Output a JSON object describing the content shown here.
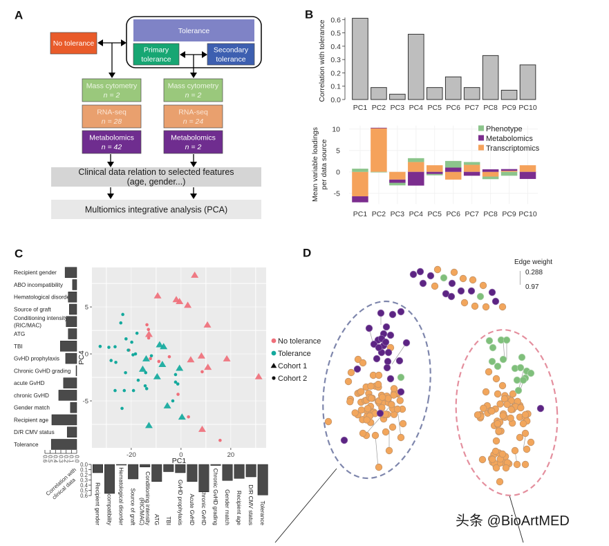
{
  "panel_labels": {
    "a": "A",
    "b": "B",
    "c": "C",
    "d": "D"
  },
  "panel_a": {
    "no_tolerance": "No tolerance",
    "tolerance": "Tolerance",
    "primary_tolerance": [
      "Primary",
      "tolerance"
    ],
    "secondary_tolerance": [
      "Secondary",
      "tolerance"
    ],
    "left_column": [
      {
        "title": "Mass cytometry",
        "n": "n = 2"
      },
      {
        "title": "RNA-seq",
        "n": "n = 28"
      },
      {
        "title": "Metabolomics",
        "n": "n = 42"
      }
    ],
    "right_column": [
      {
        "title": "Mass cytometry",
        "n": "n = 2"
      },
      {
        "title": "RNA-seq",
        "n": "n = 24"
      },
      {
        "title": "Metabolomics",
        "n": "n = 2"
      }
    ],
    "clinical_step": [
      "Clinical data relation to selected features",
      "(age, gender...)"
    ],
    "integration_step": "Multiomics integrative analysis (PCA)",
    "colors": {
      "no_tolerance": "#E95B2A",
      "tolerance": "#7F83C6",
      "primary": "#17A673",
      "secondary": "#3D5FB0",
      "mass_cytometry": "#9AC87C",
      "rna_seq": "#E9A06E",
      "metabolomics": "#6F2D8F",
      "clinical": "#D5D5D5",
      "integration": "#E8E8E8"
    }
  },
  "chart_data": [
    {
      "id": "panel_b_correlation",
      "type": "bar",
      "title": "",
      "categories": [
        "PC1",
        "PC2",
        "PC3",
        "PC4",
        "PC5",
        "PC6",
        "PC7",
        "PC8",
        "PC9",
        "PC10"
      ],
      "values": [
        0.61,
        0.09,
        0.04,
        0.49,
        0.09,
        0.17,
        0.09,
        0.33,
        0.07,
        0.26
      ],
      "xlabel": "",
      "ylabel": "Correlation with tolerance",
      "ylim": [
        0,
        0.62
      ],
      "yticks": [
        0.0,
        0.1,
        0.2,
        0.3,
        0.4,
        0.5,
        0.6
      ],
      "ytick_labels": [
        "0.0",
        "0.1",
        "0.2",
        "0.3",
        "0.4",
        "0.5",
        "0.6"
      ],
      "grid": false
    },
    {
      "id": "panel_b_loadings",
      "type": "bar",
      "stacked": true,
      "categories": [
        "PC1",
        "PC2",
        "PC3",
        "PC4",
        "PC5",
        "PC6",
        "PC7",
        "PC8",
        "PC9",
        "PC10"
      ],
      "series": [
        {
          "name": "Phenotype",
          "color": "#8CC58C",
          "values": [
            0.75,
            -0.1,
            -0.6,
            0.9,
            -0.3,
            1.55,
            0.65,
            -0.6,
            -0.9,
            0.0
          ]
        },
        {
          "name": "Metabolomics",
          "color": "#7B2D8E",
          "values": [
            -1.4,
            0.1,
            -0.75,
            -3.2,
            -0.5,
            1.0,
            -0.9,
            0.6,
            0.4,
            -1.65
          ]
        },
        {
          "name": "Transcriptomics",
          "color": "#F5A25B",
          "values": [
            -5.7,
            10.2,
            -1.8,
            2.3,
            1.55,
            -1.8,
            1.65,
            -1.1,
            0.25,
            1.55
          ]
        }
      ],
      "stack_order": [
        "Transcriptomics",
        "Metabolomics",
        "Phenotype"
      ],
      "xlabel": "",
      "ylabel": [
        "Mean variable loadings",
        "per data source"
      ],
      "ylim": [
        -7.5,
        10.8
      ],
      "yticks": [
        -5,
        0,
        5,
        10
      ],
      "ytick_labels": [
        "-5",
        "0",
        "5",
        "10"
      ],
      "legend": "top-right",
      "grid": true
    },
    {
      "id": "panel_c_pca",
      "type": "scatter",
      "xlabel": "PC1",
      "ylabel": "PC4",
      "xlim": [
        -35.8,
        34.2
      ],
      "ylim": [
        -10.0,
        9.2
      ],
      "xticks": [
        -20,
        0,
        20
      ],
      "xtick_labels": [
        "-20",
        "0",
        "20"
      ],
      "yticks": [
        -5,
        0,
        5
      ],
      "ytick_labels": [
        "-5",
        "0",
        "5"
      ],
      "grid": true,
      "legend": "right",
      "legend_items": [
        {
          "label": "No tolerance",
          "marker": "circle",
          "color": "#EF6F7A"
        },
        {
          "label": "Tolerance",
          "marker": "circle",
          "color": "#14A99D"
        },
        {
          "label": "Cohort 1",
          "marker": "triangle",
          "color": "#111111"
        },
        {
          "label": "Cohort 2",
          "marker": "circle",
          "color": "#111111"
        }
      ],
      "series": [
        {
          "name": "No tolerance, Cohort 1",
          "group": "No tolerance",
          "cohort": "Cohort 1",
          "color": "#EF6F7A",
          "marker": "triangle",
          "points": [
            [
              5.5,
              8.4
            ],
            [
              -9.4,
              6.2
            ],
            [
              -1.9,
              5.8
            ],
            [
              -0.6,
              5.6
            ],
            [
              2.7,
              5.2
            ],
            [
              10.6,
              3.1
            ],
            [
              -12.9,
              2.1
            ],
            [
              8.2,
              -0.2
            ],
            [
              3.9,
              -0.6
            ],
            [
              18.4,
              -0.5
            ],
            [
              10.8,
              -1.4
            ],
            [
              31.2,
              -2.4
            ],
            [
              8.5,
              -8.0
            ]
          ]
        },
        {
          "name": "No tolerance, Cohort 2",
          "group": "No tolerance",
          "cohort": "Cohort 2",
          "color": "#EF6F7A",
          "marker": "circle",
          "points": [
            [
              -13.7,
              3.1
            ],
            [
              -13.1,
              2.6
            ],
            [
              -13.0,
              1.7
            ],
            [
              -4.7,
              -0.3
            ],
            [
              -8.9,
              -0.8
            ],
            [
              -20.9,
              0.4
            ],
            [
              -12.3,
              -0.5
            ],
            [
              8.5,
              -1.9
            ],
            [
              -1.2,
              -4.3
            ],
            [
              3.0,
              -6.7
            ],
            [
              15.7,
              -9.2
            ]
          ]
        },
        {
          "name": "Tolerance, Cohort 1",
          "group": "Tolerance",
          "cohort": "Cohort 1",
          "color": "#14A99D",
          "marker": "triangle",
          "points": [
            [
              -8.6,
              1.0
            ],
            [
              -7.0,
              0.8
            ],
            [
              -14.0,
              -0.5
            ],
            [
              -7.5,
              -1.1
            ],
            [
              -15.4,
              -1.6
            ],
            [
              -0.6,
              -1.5
            ],
            [
              -9.6,
              -2.4
            ],
            [
              -5.5,
              -5.5
            ],
            [
              0.4,
              -6.7
            ],
            [
              -12.9,
              -7.6
            ]
          ]
        },
        {
          "name": "Tolerance, Cohort 2",
          "group": "Tolerance",
          "cohort": "Cohort 2",
          "color": "#14A99D",
          "marker": "circle",
          "points": [
            [
              -23.4,
              4.2
            ],
            [
              -24.2,
              3.3
            ],
            [
              -17.7,
              2.2
            ],
            [
              -22.1,
              1.6
            ],
            [
              -19.8,
              1.25
            ],
            [
              -32.5,
              0.8
            ],
            [
              -29.0,
              0.7
            ],
            [
              -26.5,
              0.76
            ],
            [
              -21.2,
              0.4
            ],
            [
              -19.3,
              -0.1
            ],
            [
              -18.3,
              0.0
            ],
            [
              -28.1,
              -0.7
            ],
            [
              -26.2,
              -0.9
            ],
            [
              -11.9,
              -0.2
            ],
            [
              -22.3,
              -2.0
            ],
            [
              -14.2,
              -2.0
            ],
            [
              -17.2,
              -2.8
            ],
            [
              -2.2,
              -2.2
            ],
            [
              -2.2,
              -3.0
            ],
            [
              -1.3,
              -3.2
            ],
            [
              -14.4,
              -3.4
            ],
            [
              -13.8,
              -3.7
            ],
            [
              -26.5,
              -3.9
            ],
            [
              -22.8,
              -3.9
            ],
            [
              -19.1,
              -3.9
            ],
            [
              -3.3,
              -5.0
            ],
            [
              -23.7,
              -5.8
            ]
          ]
        }
      ]
    },
    {
      "id": "panel_c_row_correlation",
      "type": "bar",
      "orientation": "horizontal-reversed",
      "categories": [
        "Recipient gender",
        "ABO incompatibility",
        "Hematological disorder",
        "Source of graft",
        "Conditioning intensity (RIC/MAC)",
        "ATG",
        "TBI",
        "GvHD prophylaxis",
        "Chronic GvHD grading",
        "acute GvHD",
        "chronic GvHD",
        "Gender match",
        "Recipient age",
        "D/R CMV status",
        "Tolerance"
      ],
      "label_lines": [
        [
          "Recipient gender"
        ],
        [
          "ABO incompatibility"
        ],
        [
          "Hematological disorder"
        ],
        [
          "Source of graft"
        ],
        [
          "Conditioning intensity",
          "(RIC/MAC)"
        ],
        [
          "ATG"
        ],
        [
          "TBI"
        ],
        [
          "GvHD prophylaxis"
        ],
        [
          "Chronic GvHD grading"
        ],
        [
          "acute GvHD"
        ],
        [
          "chronic GvHD"
        ],
        [
          "Gender match"
        ],
        [
          "Recipient age"
        ],
        [
          "D/R CMV status"
        ],
        [
          "Tolerance"
        ]
      ],
      "values": [
        0.22,
        0.08,
        0.16,
        0.14,
        0.2,
        0.16,
        0.31,
        0.21,
        0.01,
        0.25,
        0.34,
        0.12,
        0.47,
        0.18,
        0.48
      ],
      "xlim": [
        0,
        0.6
      ],
      "xticks": [
        0.0,
        0.1,
        0.2,
        0.3,
        0.4,
        0.5,
        0.6
      ],
      "xtick_labels": [
        "0.0",
        "0.1",
        "0.2",
        "0.3",
        "0.4",
        "0.5",
        "0.6"
      ]
    },
    {
      "id": "panel_c_column_correlation",
      "type": "bar",
      "orientation": "vertical-downward",
      "categories": [
        "Recipient gender",
        "ABO incompatibility",
        "Hematological disorder",
        "Source of graft",
        "Conditioning intensity (RIC/MAC)",
        "ATG",
        "TBI",
        "GvHD prophylaxis",
        "Acute GvHD",
        "Chronic GvHD",
        "Chronic GvHD grading",
        "Gender match",
        "Recipient age",
        "D/R CMV status",
        "Tolerance"
      ],
      "label_lines": [
        [
          "Recipient gender"
        ],
        [
          "ABO incompatibility"
        ],
        [
          "Hematological disorder"
        ],
        [
          "Source of graft"
        ],
        [
          "Conditioning intensity",
          "(RIC/MAC)"
        ],
        [
          "ATG"
        ],
        [
          "TBI"
        ],
        [
          "GvHD prophylaxis"
        ],
        [
          "Acute GvHD"
        ],
        [
          "Chronic GvHD"
        ],
        [
          "Chronic GvHD grading"
        ],
        [
          "Gender match"
        ],
        [
          "Recipient age"
        ],
        [
          "D/R CMV status"
        ],
        [
          "Tolerance"
        ]
      ],
      "values": [
        0.16,
        0.56,
        0.01,
        0.28,
        0.05,
        0.33,
        0.14,
        0.16,
        0.33,
        0.53,
        0.02,
        0.31,
        0.27,
        0.24,
        0.59
      ],
      "ylabel": [
        "Correlation with",
        "clinical data"
      ],
      "ylim": [
        0,
        0.6
      ],
      "yticks": [
        0.0,
        0.1,
        0.2,
        0.3,
        0.4,
        0.5,
        0.6
      ],
      "ytick_labels": [
        "0.0",
        "0.1",
        "0.2",
        "0.3",
        "0.4",
        "0.5",
        "0.6"
      ]
    }
  ],
  "panel_d": {
    "legend": {
      "title": "Edge weight",
      "values": [
        "0.288",
        "0.97"
      ]
    },
    "node_colors": {
      "Metabolomics": "#5C2483",
      "Transcriptomics": "#F2A65C",
      "Phenotype": "#7FBF7B"
    },
    "clusters": [
      {
        "id": "top",
        "outline": "none",
        "counts": {
          "Metabolomics": 11,
          "Transcriptomics": 10,
          "Phenotype": 2
        }
      },
      {
        "id": "left",
        "outline": "dashed",
        "outline_color": "#7E86AC",
        "counts": {
          "Metabolomics": 25,
          "Transcriptomics": 75,
          "Phenotype": 1
        }
      },
      {
        "id": "right",
        "outline": "dashed",
        "outline_color": "#E48F9E",
        "counts": {
          "Metabolomics": 1,
          "Transcriptomics": 80,
          "Phenotype": 16
        }
      }
    ]
  },
  "watermark": "头条 @BioArtMED"
}
